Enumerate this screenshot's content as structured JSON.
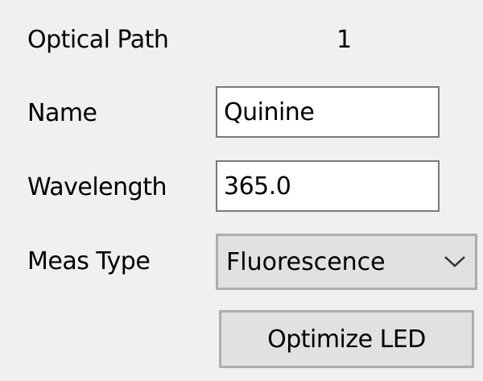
{
  "form": {
    "optical_path_label": "Optical Path",
    "optical_path_value": "1",
    "name_label": "Name",
    "name_value": "Quinine",
    "wavelength_label": "Wavelength",
    "wavelength_value": "365.0",
    "meas_type_label": "Meas Type",
    "meas_type_value": "Fluorescence",
    "optimize_button": "Optimize LED"
  },
  "icons": {
    "dropdown": "chevron-down-icon"
  }
}
